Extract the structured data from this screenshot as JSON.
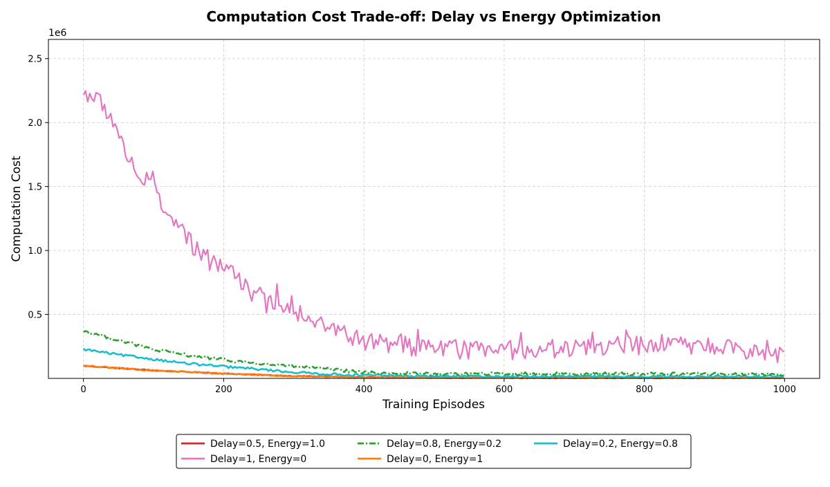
{
  "chart_data": {
    "type": "line",
    "title": "Computation Cost Trade-off: Delay vs Energy Optimization",
    "xlabel": "Training Episodes",
    "ylabel": "Computation Cost",
    "y_multiplier_label": "1e6",
    "xlim": [
      -50,
      1050
    ],
    "ylim": [
      0,
      2650000
    ],
    "x_ticks": [
      0,
      200,
      400,
      600,
      800,
      1000
    ],
    "x_tick_labels": [
      "0",
      "200",
      "400",
      "600",
      "800",
      "1000"
    ],
    "y_ticks": [
      500000,
      1000000,
      1500000,
      2000000,
      2500000
    ],
    "y_tick_labels": [
      "0.5",
      "1.0",
      "1.5",
      "2.0",
      "2.5"
    ],
    "grid": true,
    "legend_position": "bottom-center",
    "series": [
      {
        "name": "Delay=0.5, Energy=1.0",
        "color": "#d62728",
        "style": "solid",
        "anchors": [
          [
            0,
            98000
          ],
          [
            100,
            62000
          ],
          [
            200,
            38000
          ],
          [
            300,
            18000
          ],
          [
            400,
            9000
          ],
          [
            500,
            6000
          ],
          [
            700,
            5000
          ],
          [
            1000,
            5000
          ]
        ],
        "noise": 3000
      },
      {
        "name": "Delay=0, Energy=1",
        "color": "#ff7f0e",
        "style": "solid",
        "anchors": [
          [
            0,
            98000
          ],
          [
            100,
            62000
          ],
          [
            200,
            38000
          ],
          [
            300,
            18000
          ],
          [
            400,
            9000
          ],
          [
            500,
            6000
          ],
          [
            700,
            5000
          ],
          [
            1000,
            5000
          ]
        ],
        "noise": 6000
      },
      {
        "name": "Delay=1, Energy=0",
        "color": "#e377c2",
        "style": "solid",
        "anchors": [
          [
            0,
            2220000
          ],
          [
            10,
            2230000
          ],
          [
            40,
            2050000
          ],
          [
            60,
            1780000
          ],
          [
            80,
            1580000
          ],
          [
            100,
            1500000
          ],
          [
            120,
            1280000
          ],
          [
            140,
            1150000
          ],
          [
            160,
            1000000
          ],
          [
            200,
            870000
          ],
          [
            220,
            800000
          ],
          [
            240,
            670000
          ],
          [
            280,
            560000
          ],
          [
            320,
            500000
          ],
          [
            360,
            370000
          ],
          [
            400,
            290000
          ],
          [
            450,
            260000
          ],
          [
            500,
            230000
          ],
          [
            600,
            220000
          ],
          [
            700,
            240000
          ],
          [
            800,
            260000
          ],
          [
            900,
            240000
          ],
          [
            1000,
            190000
          ]
        ],
        "noise": 75000
      },
      {
        "name": "Delay=0.2, Energy=0.8",
        "color": "#17becf",
        "style": "solid",
        "anchors": [
          [
            0,
            228000
          ],
          [
            50,
            185000
          ],
          [
            100,
            150000
          ],
          [
            150,
            115000
          ],
          [
            200,
            92000
          ],
          [
            250,
            72000
          ],
          [
            300,
            48000
          ],
          [
            350,
            33000
          ],
          [
            400,
            24000
          ],
          [
            500,
            17000
          ],
          [
            700,
            15000
          ],
          [
            1000,
            15000
          ]
        ],
        "noise": 9000
      },
      {
        "name": "Delay=0.8, Energy=0.2",
        "color": "#2ca02c",
        "style": "dashdot",
        "anchors": [
          [
            0,
            370000
          ],
          [
            50,
            300000
          ],
          [
            100,
            225000
          ],
          [
            150,
            180000
          ],
          [
            200,
            145000
          ],
          [
            250,
            115000
          ],
          [
            300,
            95000
          ],
          [
            350,
            72000
          ],
          [
            400,
            45000
          ],
          [
            500,
            35000
          ],
          [
            700,
            37000
          ],
          [
            900,
            35000
          ],
          [
            1000,
            30000
          ]
        ],
        "noise": 12000
      }
    ],
    "legend_order": [
      0,
      2,
      4,
      1,
      3
    ]
  }
}
